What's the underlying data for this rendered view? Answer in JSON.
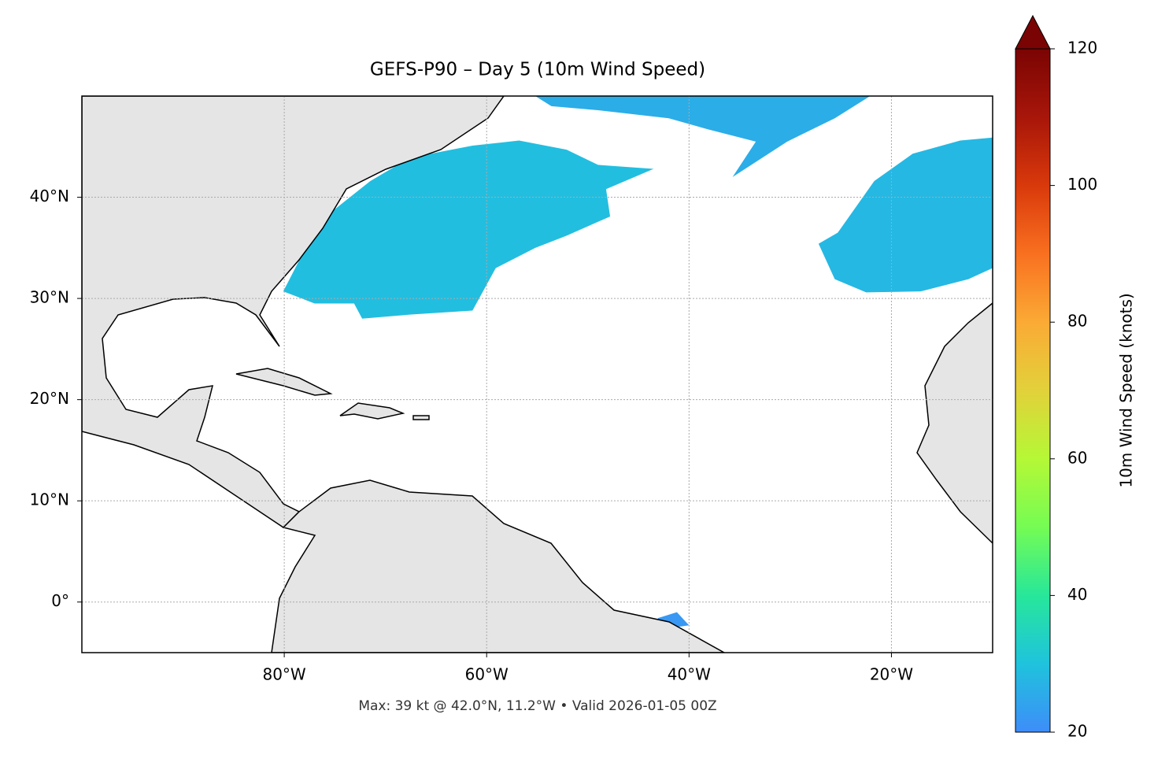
{
  "chart_data": {
    "type": "map",
    "title": "GEFS-P90 – Day 5 (10m Wind Speed)",
    "footer": "Max: 39 kt @ 42.0°N, 11.2°W • Valid 2026-01-05 00Z",
    "xlim": [
      -100,
      -10
    ],
    "ylim": [
      -5,
      50
    ],
    "xticks": [
      {
        "value": -80,
        "label": "80°W"
      },
      {
        "value": -60,
        "label": "60°W"
      },
      {
        "value": -40,
        "label": "40°W"
      },
      {
        "value": -20,
        "label": "20°W"
      }
    ],
    "yticks": [
      {
        "value": 0,
        "label": "0°"
      },
      {
        "value": 10,
        "label": "10°N"
      },
      {
        "value": 20,
        "label": "20°N"
      },
      {
        "value": 30,
        "label": "30°N"
      },
      {
        "value": 40,
        "label": "40°N"
      }
    ],
    "grid": true,
    "wind_areas": [
      {
        "lon": [
          -80.1,
          -78.5,
          -75.4,
          -71.5,
          -67.6,
          -61.4,
          -56.8,
          -52.1,
          -49.0,
          -43.5,
          -48.2,
          -47.8,
          -52.1,
          -55.2,
          -59.1,
          -61.4,
          -67.6,
          -72.3,
          -73.1,
          -77.0
        ],
        "lat": [
          30.7,
          33.8,
          38.5,
          41.6,
          43.9,
          45.1,
          45.6,
          44.7,
          43.2,
          42.8,
          40.8,
          38.1,
          36.2,
          35.0,
          33.0,
          28.8,
          28.4,
          28.0,
          29.5,
          29.5
        ],
        "value": 29
      },
      {
        "lon": [
          -55.2,
          -22.1,
          -25.6,
          -30.3,
          -35.7,
          -33.4,
          -38.1,
          -42.0,
          -49.0,
          -53.6
        ],
        "lat": [
          50,
          50,
          47.8,
          45.5,
          42.0,
          45.5,
          46.7,
          47.8,
          48.6,
          49.0
        ],
        "value": 26
      },
      {
        "lon": [
          -10,
          -10,
          -12.4,
          -17.1,
          -22.5,
          -25.6,
          -27.2,
          -25.3,
          -21.7,
          -17.9,
          -13.2
        ],
        "lat": [
          45.9,
          33.0,
          31.9,
          30.7,
          30.6,
          31.9,
          35.4,
          36.5,
          41.6,
          44.3,
          45.6
        ],
        "value": 28
      },
      {
        "lon": [
          -43.1,
          -41.2,
          -40.0,
          -42.7
        ],
        "lat": [
          -1.6,
          -1.0,
          -2.3,
          -2.7
        ],
        "value": 22
      }
    ],
    "colorbar": {
      "label": "10m Wind Speed (knots)",
      "lim": [
        20,
        120
      ],
      "ticks": [
        20,
        40,
        60,
        80,
        100,
        120
      ],
      "colors": [
        "#3e8df9",
        "#1fc3dd",
        "#27e79a",
        "#75fc54",
        "#b5f836",
        "#e2d13a",
        "#fbaa35",
        "#f97020",
        "#d9390b",
        "#a8160a",
        "#7a0403"
      ]
    }
  }
}
